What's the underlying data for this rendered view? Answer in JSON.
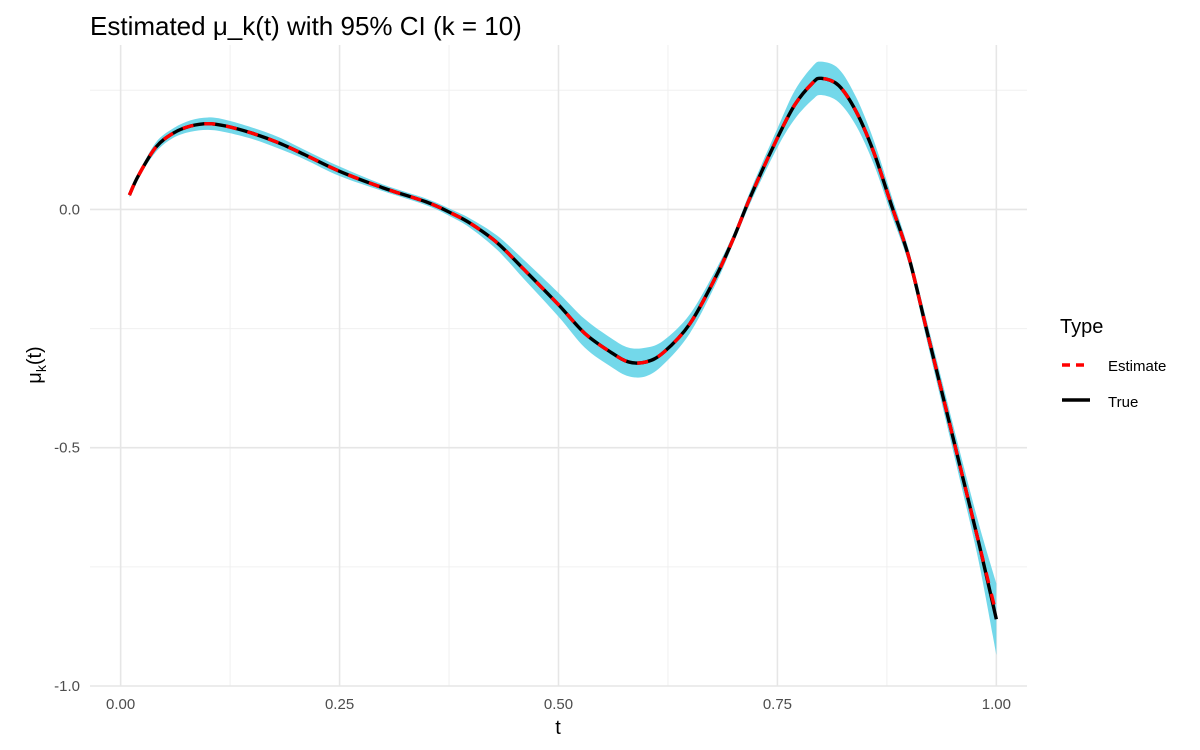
{
  "chart_data": {
    "type": "line",
    "title": "Estimated μ_k(t) with 95% CI (k = 10)",
    "xlabel": "t",
    "ylabel_main": "μ",
    "ylabel_sub": "k",
    "ylabel_suffix": "(t)",
    "xlim": [
      -0.035,
      1.035
    ],
    "ylim": [
      -1.0,
      0.345
    ],
    "x_ticks": [
      0.0,
      0.25,
      0.5,
      0.75,
      1.0
    ],
    "x_tick_labels": [
      "0.00",
      "0.25",
      "0.50",
      "0.75",
      "1.00"
    ],
    "y_ticks": [
      -1.0,
      -0.5,
      0.0
    ],
    "y_tick_labels": [
      "-1.0",
      "-0.5",
      "0.0"
    ],
    "grid": true,
    "legend": {
      "title": "Type",
      "position": "right",
      "items": [
        {
          "label": "Estimate",
          "color": "#ff0000",
          "dash": true
        },
        {
          "label": "True",
          "color": "#000000",
          "dash": false
        }
      ]
    },
    "ci_color": "#5bd1e6",
    "x": [
      0.01,
      0.02,
      0.04,
      0.06,
      0.08,
      0.1,
      0.12,
      0.15,
      0.18,
      0.21,
      0.25,
      0.3,
      0.35,
      0.38,
      0.4,
      0.43,
      0.46,
      0.5,
      0.53,
      0.56,
      0.58,
      0.6,
      0.62,
      0.65,
      0.68,
      0.7,
      0.72,
      0.75,
      0.77,
      0.79,
      0.8,
      0.82,
      0.84,
      0.86,
      0.88,
      0.9,
      0.92,
      0.94,
      0.96,
      0.98,
      1.0
    ],
    "series": [
      {
        "name": "True",
        "values": [
          0.03,
          0.07,
          0.13,
          0.16,
          0.175,
          0.18,
          0.175,
          0.16,
          0.14,
          0.115,
          0.08,
          0.045,
          0.015,
          -0.01,
          -0.03,
          -0.07,
          -0.125,
          -0.2,
          -0.26,
          -0.3,
          -0.32,
          -0.32,
          -0.3,
          -0.24,
          -0.14,
          -0.06,
          0.03,
          0.15,
          0.22,
          0.265,
          0.275,
          0.26,
          0.205,
          0.12,
          0.01,
          -0.1,
          -0.25,
          -0.4,
          -0.55,
          -0.7,
          -0.86
        ]
      },
      {
        "name": "Estimate",
        "values": [
          0.03,
          0.07,
          0.13,
          0.16,
          0.175,
          0.18,
          0.175,
          0.16,
          0.14,
          0.115,
          0.08,
          0.045,
          0.015,
          -0.01,
          -0.03,
          -0.07,
          -0.125,
          -0.2,
          -0.26,
          -0.3,
          -0.32,
          -0.32,
          -0.3,
          -0.24,
          -0.14,
          -0.06,
          0.03,
          0.15,
          0.22,
          0.265,
          0.275,
          0.26,
          0.205,
          0.12,
          0.01,
          -0.1,
          -0.25,
          -0.4,
          -0.55,
          -0.7,
          -0.85
        ]
      }
    ],
    "ci_lower": [
      0.025,
      0.065,
      0.12,
      0.15,
      0.163,
      0.167,
      0.162,
      0.148,
      0.128,
      0.105,
      0.07,
      0.038,
      0.008,
      -0.018,
      -0.04,
      -0.085,
      -0.145,
      -0.225,
      -0.29,
      -0.33,
      -0.35,
      -0.35,
      -0.325,
      -0.26,
      -0.155,
      -0.07,
      0.017,
      0.13,
      0.19,
      0.23,
      0.24,
      0.225,
      0.175,
      0.095,
      -0.01,
      -0.115,
      -0.27,
      -0.425,
      -0.58,
      -0.74,
      -0.935
    ],
    "ci_upper": [
      0.035,
      0.075,
      0.14,
      0.17,
      0.187,
      0.193,
      0.188,
      0.172,
      0.152,
      0.125,
      0.09,
      0.052,
      0.022,
      -0.002,
      -0.02,
      -0.055,
      -0.105,
      -0.175,
      -0.23,
      -0.27,
      -0.29,
      -0.29,
      -0.275,
      -0.22,
      -0.125,
      -0.05,
      0.043,
      0.17,
      0.25,
      0.3,
      0.31,
      0.295,
      0.235,
      0.145,
      0.03,
      -0.085,
      -0.23,
      -0.375,
      -0.52,
      -0.66,
      -0.785
    ]
  }
}
